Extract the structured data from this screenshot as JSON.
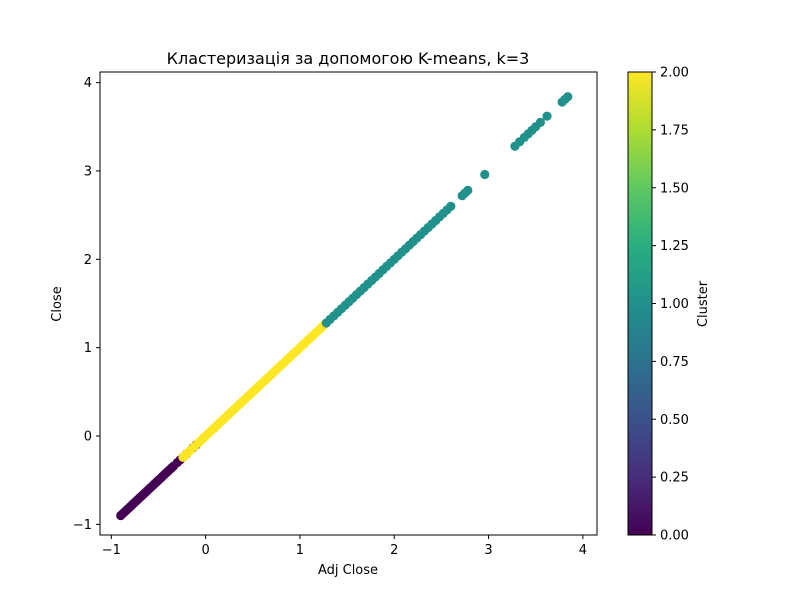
{
  "chart_data": {
    "type": "scatter",
    "title": "Кластеризація за допомогою K-means, k=3",
    "xlabel": "Adj Close",
    "ylabel": "Close",
    "xlim": [
      -1.12,
      4.15
    ],
    "ylim": [
      -1.12,
      4.12
    ],
    "xticks": [
      -1,
      0,
      1,
      2,
      3,
      4
    ],
    "xtick_labels": [
      "−1",
      "0",
      "1",
      "2",
      "3",
      "4"
    ],
    "yticks": [
      -1,
      0,
      1,
      2,
      3,
      4
    ],
    "ytick_labels": [
      "−1",
      "0",
      "1",
      "2",
      "3",
      "4"
    ],
    "grid": false,
    "colormap": "viridis",
    "colorbar": {
      "label": "Cluster",
      "range": [
        0,
        2
      ],
      "ticks": [
        0,
        0.25,
        0.5,
        0.75,
        1.0,
        1.25,
        1.5,
        1.75,
        2.0
      ],
      "tick_labels": [
        "0.00",
        "0.25",
        "0.50",
        "0.75",
        "1.00",
        "1.25",
        "1.50",
        "1.75",
        "2.00"
      ]
    },
    "series": [
      {
        "cluster": 0,
        "color": "#440154",
        "points": [
          [
            -0.9,
            -0.9
          ],
          [
            -0.88,
            -0.88
          ],
          [
            -0.86,
            -0.86
          ],
          [
            -0.84,
            -0.84
          ],
          [
            -0.82,
            -0.82
          ],
          [
            -0.8,
            -0.8
          ],
          [
            -0.78,
            -0.78
          ],
          [
            -0.76,
            -0.76
          ],
          [
            -0.74,
            -0.74
          ],
          [
            -0.72,
            -0.72
          ],
          [
            -0.7,
            -0.7
          ],
          [
            -0.68,
            -0.68
          ],
          [
            -0.66,
            -0.66
          ],
          [
            -0.64,
            -0.64
          ],
          [
            -0.62,
            -0.62
          ],
          [
            -0.6,
            -0.6
          ],
          [
            -0.58,
            -0.58
          ],
          [
            -0.56,
            -0.56
          ],
          [
            -0.54,
            -0.54
          ],
          [
            -0.52,
            -0.52
          ],
          [
            -0.5,
            -0.5
          ],
          [
            -0.48,
            -0.48
          ],
          [
            -0.46,
            -0.46
          ],
          [
            -0.44,
            -0.44
          ],
          [
            -0.42,
            -0.42
          ],
          [
            -0.4,
            -0.4
          ],
          [
            -0.38,
            -0.38
          ],
          [
            -0.36,
            -0.36
          ],
          [
            -0.34,
            -0.34
          ],
          [
            -0.3,
            -0.3
          ],
          [
            -0.27,
            -0.27
          ],
          [
            -0.24,
            -0.24
          ],
          [
            -0.2,
            -0.2
          ],
          [
            -0.13,
            -0.13
          ],
          [
            -0.1,
            -0.1
          ]
        ]
      },
      {
        "cluster": 2,
        "color": "#fde725",
        "points": [
          [
            -0.24,
            -0.24
          ],
          [
            -0.22,
            -0.22
          ],
          [
            -0.19,
            -0.19
          ],
          [
            -0.16,
            -0.16
          ],
          [
            -0.12,
            -0.12
          ],
          [
            -0.08,
            -0.08
          ],
          [
            -0.05,
            -0.05
          ],
          [
            -0.02,
            -0.02
          ],
          [
            0.0,
            0.0
          ],
          [
            0.03,
            0.03
          ],
          [
            0.06,
            0.06
          ],
          [
            0.09,
            0.09
          ],
          [
            0.12,
            0.12
          ],
          [
            0.15,
            0.15
          ],
          [
            0.18,
            0.18
          ],
          [
            0.21,
            0.21
          ],
          [
            0.24,
            0.24
          ],
          [
            0.27,
            0.27
          ],
          [
            0.3,
            0.3
          ],
          [
            0.33,
            0.33
          ],
          [
            0.36,
            0.36
          ],
          [
            0.39,
            0.39
          ],
          [
            0.42,
            0.42
          ],
          [
            0.45,
            0.45
          ],
          [
            0.48,
            0.48
          ],
          [
            0.51,
            0.51
          ],
          [
            0.54,
            0.54
          ],
          [
            0.57,
            0.57
          ],
          [
            0.6,
            0.6
          ],
          [
            0.63,
            0.63
          ],
          [
            0.66,
            0.66
          ],
          [
            0.69,
            0.69
          ],
          [
            0.72,
            0.72
          ],
          [
            0.75,
            0.75
          ],
          [
            0.78,
            0.78
          ],
          [
            0.81,
            0.81
          ],
          [
            0.84,
            0.84
          ],
          [
            0.87,
            0.87
          ],
          [
            0.9,
            0.9
          ],
          [
            0.93,
            0.93
          ],
          [
            0.96,
            0.96
          ],
          [
            0.99,
            0.99
          ],
          [
            1.02,
            1.02
          ],
          [
            1.05,
            1.05
          ],
          [
            1.08,
            1.08
          ],
          [
            1.11,
            1.11
          ],
          [
            1.14,
            1.14
          ],
          [
            1.17,
            1.17
          ],
          [
            1.2,
            1.2
          ],
          [
            1.23,
            1.23
          ],
          [
            1.26,
            1.26
          ]
        ]
      },
      {
        "cluster": 1,
        "color": "#21918c",
        "points": [
          [
            1.28,
            1.28
          ],
          [
            1.32,
            1.32
          ],
          [
            1.36,
            1.36
          ],
          [
            1.4,
            1.4
          ],
          [
            1.44,
            1.44
          ],
          [
            1.48,
            1.48
          ],
          [
            1.52,
            1.52
          ],
          [
            1.56,
            1.56
          ],
          [
            1.6,
            1.6
          ],
          [
            1.64,
            1.64
          ],
          [
            1.68,
            1.68
          ],
          [
            1.72,
            1.72
          ],
          [
            1.76,
            1.76
          ],
          [
            1.8,
            1.8
          ],
          [
            1.84,
            1.84
          ],
          [
            1.88,
            1.88
          ],
          [
            1.92,
            1.92
          ],
          [
            1.96,
            1.96
          ],
          [
            2.0,
            2.0
          ],
          [
            2.04,
            2.04
          ],
          [
            2.08,
            2.08
          ],
          [
            2.12,
            2.12
          ],
          [
            2.16,
            2.16
          ],
          [
            2.2,
            2.2
          ],
          [
            2.24,
            2.24
          ],
          [
            2.28,
            2.28
          ],
          [
            2.32,
            2.32
          ],
          [
            2.36,
            2.36
          ],
          [
            2.4,
            2.4
          ],
          [
            2.44,
            2.44
          ],
          [
            2.48,
            2.48
          ],
          [
            2.52,
            2.52
          ],
          [
            2.56,
            2.56
          ],
          [
            2.6,
            2.6
          ],
          [
            2.72,
            2.72
          ],
          [
            2.75,
            2.75
          ],
          [
            2.78,
            2.78
          ],
          [
            2.96,
            2.96
          ],
          [
            3.28,
            3.28
          ],
          [
            3.33,
            3.33
          ],
          [
            3.38,
            3.38
          ],
          [
            3.42,
            3.42
          ],
          [
            3.46,
            3.46
          ],
          [
            3.5,
            3.5
          ],
          [
            3.55,
            3.55
          ],
          [
            3.62,
            3.62
          ],
          [
            3.78,
            3.78
          ],
          [
            3.81,
            3.81
          ],
          [
            3.84,
            3.84
          ]
        ]
      }
    ]
  }
}
